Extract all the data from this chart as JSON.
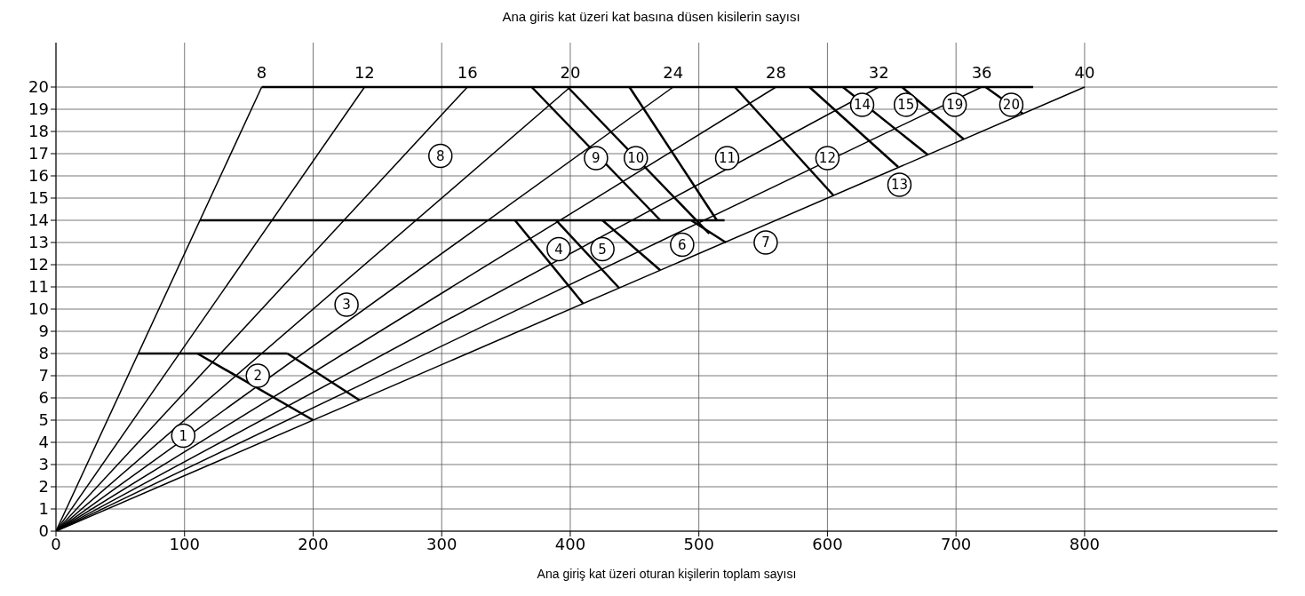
{
  "chart_data": {
    "type": "line",
    "title": "Ana giris kat üzeri kat basına düsen kisilerin sayısı",
    "xlabel": "Ana giriş kat üzeri oturan kişilerin toplam sayısı",
    "xlim": [
      0,
      950
    ],
    "ylim": [
      0,
      22
    ],
    "xticks": [
      0,
      100,
      200,
      300,
      400,
      500,
      600,
      700,
      800
    ],
    "yticks": [
      0,
      1,
      2,
      3,
      4,
      5,
      6,
      7,
      8,
      9,
      10,
      11,
      12,
      13,
      14,
      15,
      16,
      17,
      18,
      19,
      20
    ],
    "grid": true,
    "legend": false,
    "marker": "none",
    "line_style": "solid",
    "series": [
      {
        "name": "8",
        "color": "#000000",
        "x": [
          0,
          160
        ],
        "values": [
          0,
          20
        ]
      },
      {
        "name": "12",
        "color": "#000000",
        "x": [
          0,
          240
        ],
        "values": [
          0,
          20
        ]
      },
      {
        "name": "16",
        "color": "#000000",
        "x": [
          0,
          320
        ],
        "values": [
          0,
          20
        ]
      },
      {
        "name": "20",
        "color": "#000000",
        "x": [
          0,
          400
        ],
        "values": [
          0,
          20
        ]
      },
      {
        "name": "24",
        "color": "#000000",
        "x": [
          0,
          480
        ],
        "values": [
          0,
          20
        ]
      },
      {
        "name": "28",
        "color": "#000000",
        "x": [
          0,
          560
        ],
        "values": [
          0,
          20
        ]
      },
      {
        "name": "32",
        "color": "#000000",
        "x": [
          0,
          640
        ],
        "values": [
          0,
          20
        ]
      },
      {
        "name": "36",
        "color": "#000000",
        "x": [
          0,
          720
        ],
        "values": [
          0,
          20
        ]
      },
      {
        "name": "40",
        "color": "#000000",
        "x": [
          0,
          800
        ],
        "values": [
          0,
          20
        ]
      },
      {
        "color": "#000000",
        "x": [
          160,
          760
        ],
        "values": [
          20,
          20
        ]
      },
      {
        "color": "#000000",
        "x": [
          112,
          520
        ],
        "values": [
          14,
          14
        ]
      },
      {
        "color": "#000000",
        "x": [
          64,
          180
        ],
        "values": [
          8,
          8
        ]
      },
      {
        "color": "#000000",
        "x": [
          110,
          200
        ],
        "values": [
          8,
          5
        ]
      },
      {
        "color": "#000000",
        "x": [
          180,
          236
        ],
        "values": [
          8,
          5.9
        ]
      },
      {
        "color": "#000000",
        "x": [
          357,
          410
        ],
        "values": [
          14,
          10.25
        ]
      },
      {
        "color": "#000000",
        "x": [
          389,
          438
        ],
        "values": [
          14,
          10.95
        ]
      },
      {
        "color": "#000000",
        "x": [
          425,
          470
        ],
        "values": [
          14,
          11.75
        ]
      },
      {
        "color": "#000000",
        "x": [
          494,
          521
        ],
        "values": [
          14,
          13
        ]
      },
      {
        "color": "#000000",
        "x": [
          370,
          470
        ],
        "values": [
          20,
          14
        ]
      },
      {
        "color": "#000000",
        "x": [
          398,
          508
        ],
        "values": [
          20,
          13.4
        ]
      },
      {
        "color": "#000000",
        "x": [
          446,
          514
        ],
        "values": [
          20,
          14
        ]
      },
      {
        "color": "#000000",
        "x": [
          528,
          605
        ],
        "values": [
          20,
          15.1
        ]
      },
      {
        "color": "#000000",
        "x": [
          586,
          655
        ],
        "values": [
          20,
          16.4
        ]
      },
      {
        "color": "#000000",
        "x": [
          612,
          678
        ],
        "values": [
          20,
          16.95
        ]
      },
      {
        "color": "#000000",
        "x": [
          658,
          706
        ],
        "values": [
          20,
          17.65
        ]
      },
      {
        "color": "#000000",
        "x": [
          723,
          752
        ],
        "values": [
          20,
          18.8
        ]
      }
    ],
    "annotations": [
      {
        "text": "1",
        "x": 99,
        "y": 4.3
      },
      {
        "text": "2",
        "x": 157,
        "y": 7
      },
      {
        "text": "3",
        "x": 226,
        "y": 10.2
      },
      {
        "text": "4",
        "x": 391,
        "y": 12.7
      },
      {
        "text": "5",
        "x": 425,
        "y": 12.7
      },
      {
        "text": "6",
        "x": 487,
        "y": 12.9
      },
      {
        "text": "7",
        "x": 552,
        "y": 13
      },
      {
        "text": "8",
        "x": 299,
        "y": 16.9
      },
      {
        "text": "9",
        "x": 420,
        "y": 16.8
      },
      {
        "text": "10",
        "x": 451,
        "y": 16.8
      },
      {
        "text": "11",
        "x": 522,
        "y": 16.8
      },
      {
        "text": "12",
        "x": 600,
        "y": 16.8
      },
      {
        "text": "13",
        "x": 656,
        "y": 15.6
      },
      {
        "text": "14",
        "x": 627,
        "y": 19.2
      },
      {
        "text": "15",
        "x": 661,
        "y": 19.2
      },
      {
        "text": "19",
        "x": 699,
        "y": 19.2
      },
      {
        "text": "20",
        "x": 743,
        "y": 19.2
      }
    ]
  }
}
